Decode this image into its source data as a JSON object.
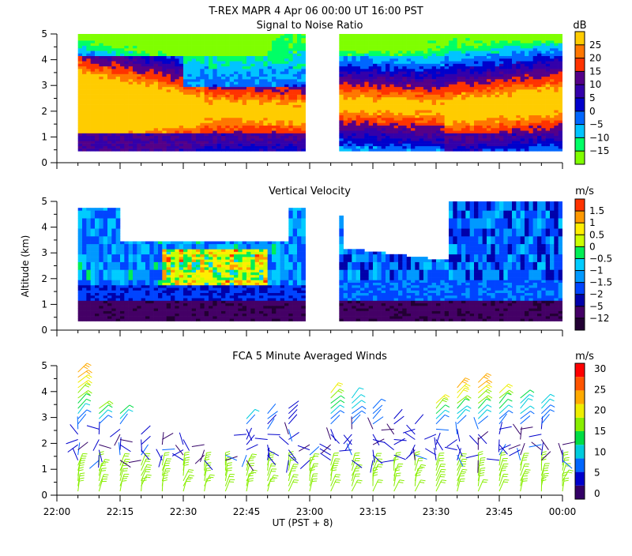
{
  "header": {
    "title": "T-REX   MAPR   4 Apr 06   00:00 UT   16:00   PST"
  },
  "chart_data": [
    {
      "type": "heatmap",
      "title": "Signal to Noise Ratio",
      "ylabel": "",
      "units": "dB",
      "ylim": [
        0,
        5
      ],
      "yticks": [
        "0",
        "1",
        "2",
        "3",
        "4",
        "5"
      ],
      "colorbar_ticks": [
        "−15",
        "−10",
        "−5",
        "0",
        "5",
        "10",
        "15",
        "20",
        "25"
      ],
      "colors": [
        "#7fff00",
        "#00ff66",
        "#00c4ff",
        "#0066ff",
        "#0000cc",
        "#3300aa",
        "#550088",
        "#ff3300",
        "#ff7700",
        "#ffcc00"
      ]
    },
    {
      "type": "heatmap",
      "title": "Vertical Velocity",
      "ylabel": "Altitude (km)",
      "units": "m/s",
      "ylim": [
        0,
        5
      ],
      "yticks": [
        "0",
        "1",
        "2",
        "3",
        "4",
        "5"
      ],
      "colorbar_ticks": [
        "−12",
        "−5",
        "−2",
        "−1.5",
        "−1",
        "−0.5",
        "0",
        "0.5",
        "1",
        "1.5"
      ],
      "colors": [
        "#220033",
        "#440066",
        "#0000aa",
        "#0044ff",
        "#0099ff",
        "#00ccff",
        "#00ee55",
        "#ccff00",
        "#ffee00",
        "#ff9900",
        "#ff3300"
      ]
    },
    {
      "type": "scatter",
      "title": "FCA 5 Minute Averaged Winds",
      "ylabel": "",
      "xlabel": "UT  (PST + 8)",
      "units": "m/s",
      "ylim": [
        0,
        5
      ],
      "yticks": [
        "0",
        "1",
        "2",
        "3",
        "4",
        "5"
      ],
      "xticks": [
        "22:00",
        "22:15",
        "22:30",
        "22:45",
        "23:00",
        "23:15",
        "23:30",
        "23:45",
        "00:00"
      ],
      "colorbar_ticks": [
        "0",
        "5",
        "10",
        "15",
        "20",
        "25",
        "30"
      ],
      "colors": [
        "#330066",
        "#0000cc",
        "#0066ff",
        "#00ccdd",
        "#00dd44",
        "#88ee00",
        "#eeee00",
        "#ffaa00",
        "#ff5500",
        "#ff0000"
      ],
      "x": [
        "22:05",
        "22:10",
        "22:15",
        "22:20",
        "22:25",
        "22:30",
        "22:35",
        "22:40",
        "22:45",
        "22:50",
        "22:55",
        "23:00",
        "23:05",
        "23:10",
        "23:15",
        "23:20",
        "23:25",
        "23:30",
        "23:35",
        "23:40",
        "23:45",
        "23:50",
        "23:55",
        "00:00"
      ],
      "upper_wind_top_km": [
        4.8,
        3.5,
        3.3,
        2.4,
        2.3,
        2.3,
        2.1,
        1.6,
        3.0,
        3.3,
        3.5,
        2.0,
        4.0,
        3.8,
        3.5,
        3.0,
        2.8,
        3.6,
        4.3,
        4.5,
        4.0,
        3.8,
        3.7,
        2.0
      ],
      "upper_wind_speed_ms": [
        26,
        18,
        15,
        5,
        4,
        4,
        5,
        3,
        11,
        7,
        6,
        4,
        20,
        13,
        9,
        6,
        4,
        23,
        26,
        27,
        20,
        14,
        13,
        8
      ]
    }
  ]
}
